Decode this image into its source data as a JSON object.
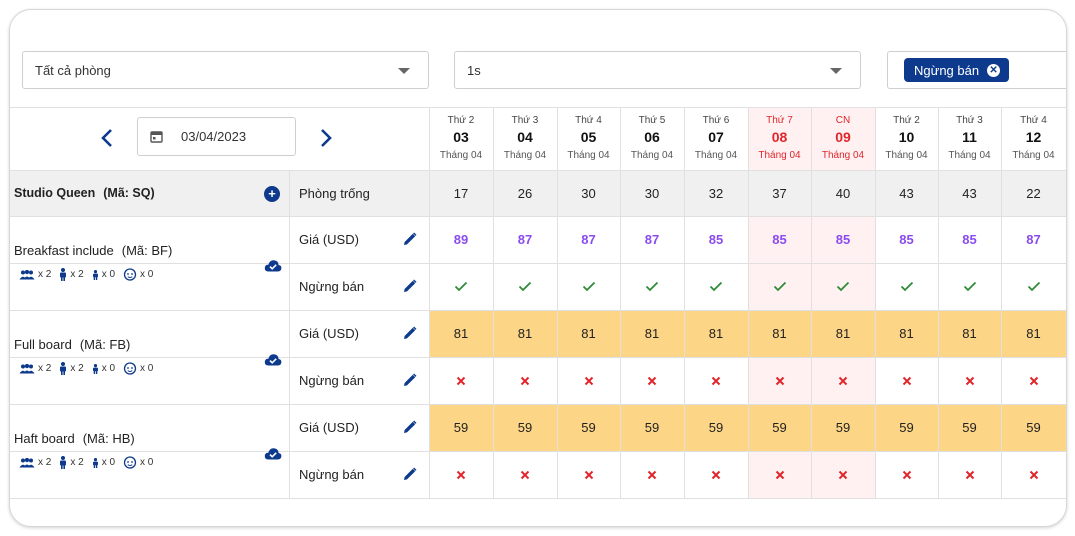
{
  "filters": {
    "room_type": "Tất cả phòng",
    "plan": "1s",
    "status_chip": "Ngừng bán"
  },
  "toolbar": {
    "date": "03/04/2023"
  },
  "days": [
    {
      "weekday": "Thứ 2",
      "day": "03",
      "month": "Tháng 04",
      "weekend": false
    },
    {
      "weekday": "Thứ 3",
      "day": "04",
      "month": "Tháng 04",
      "weekend": false
    },
    {
      "weekday": "Thứ 4",
      "day": "05",
      "month": "Tháng 04",
      "weekend": false
    },
    {
      "weekday": "Thứ 5",
      "day": "06",
      "month": "Tháng 04",
      "weekend": false
    },
    {
      "weekday": "Thứ 6",
      "day": "07",
      "month": "Tháng 04",
      "weekend": false
    },
    {
      "weekday": "Thứ 7",
      "day": "08",
      "month": "Tháng 04",
      "weekend": true
    },
    {
      "weekday": "CN",
      "day": "09",
      "month": "Tháng 04",
      "weekend": true
    },
    {
      "weekday": "Thứ 2",
      "day": "10",
      "month": "Tháng 04",
      "weekend": false
    },
    {
      "weekday": "Thứ 3",
      "day": "11",
      "month": "Tháng 04",
      "weekend": false
    },
    {
      "weekday": "Thứ 4",
      "day": "12",
      "month": "Tháng 04",
      "weekend": false
    }
  ],
  "room": {
    "name": "Studio Queen",
    "code": "(Mã: SQ)",
    "availability_label": "Phòng trống",
    "availability": [
      "17",
      "26",
      "30",
      "30",
      "32",
      "37",
      "40",
      "43",
      "43",
      "22"
    ]
  },
  "rate_plans": [
    {
      "name": "Breakfast include",
      "code": "(Mã: BF)",
      "occupancy": [
        "x 2",
        "x 2",
        "x 0",
        "x 0"
      ],
      "price_label": "Giá (USD)",
      "stop_label": "Ngừng bán",
      "prices": [
        "89",
        "87",
        "87",
        "87",
        "85",
        "85",
        "85",
        "85",
        "85",
        "87"
      ],
      "highlight": false,
      "stop_sell": false
    },
    {
      "name": "Full board",
      "code": "(Mã: FB)",
      "occupancy": [
        "x 2",
        "x 2",
        "x 0",
        "x 0"
      ],
      "price_label": "Giá (USD)",
      "stop_label": "Ngừng bán",
      "prices": [
        "81",
        "81",
        "81",
        "81",
        "81",
        "81",
        "81",
        "81",
        "81",
        "81"
      ],
      "highlight": true,
      "stop_sell": true
    },
    {
      "name": "Haft board",
      "code": "(Mã: HB)",
      "occupancy": [
        "x 2",
        "x 2",
        "x 0",
        "x 0"
      ],
      "price_label": "Giá (USD)",
      "stop_label": "Ngừng bán",
      "prices": [
        "59",
        "59",
        "59",
        "59",
        "59",
        "59",
        "59",
        "59",
        "59",
        "59"
      ],
      "highlight": true,
      "stop_sell": true
    }
  ],
  "colors": {
    "primary": "#0d3a8c",
    "price_purple": "#8a4cf0",
    "highlight": "#fdd586",
    "weekend_bg": "#fff1f1",
    "weekend_text": "#e0262b",
    "check": "#2e8b3a",
    "cross": "#e0262b"
  }
}
